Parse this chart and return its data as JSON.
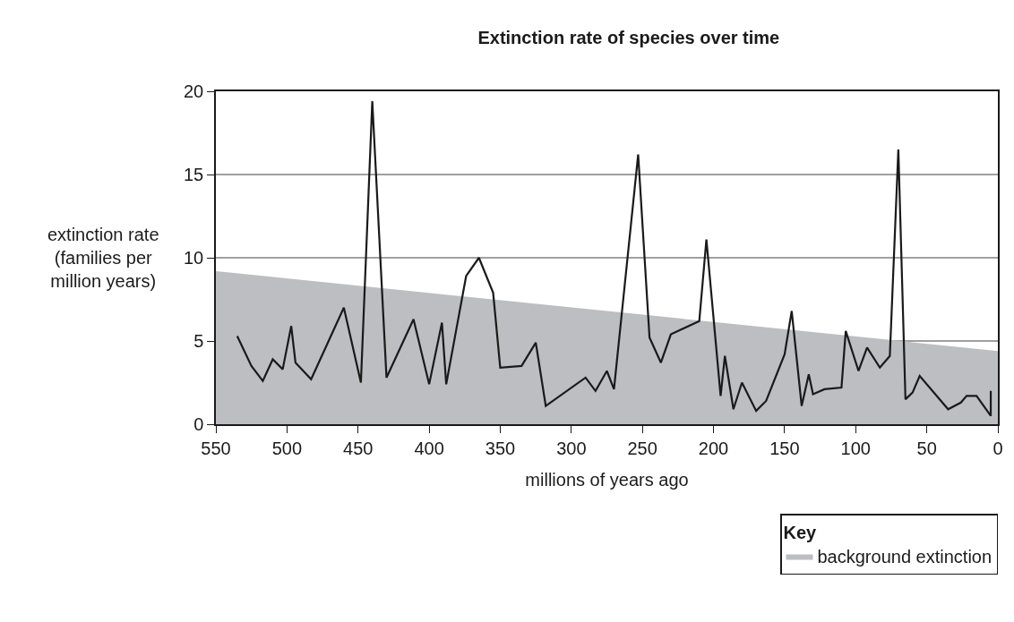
{
  "chart_data": {
    "type": "line",
    "title": "Extinction rate of species over time",
    "xlabel": "millions of years ago",
    "ylabel": "extinction rate\n(families per\nmillion years)",
    "legend_title": "Key",
    "xlim": [
      550,
      0
    ],
    "xticks": [
      550,
      500,
      450,
      400,
      350,
      300,
      250,
      200,
      150,
      100,
      50,
      0
    ],
    "ylim": [
      0,
      20
    ],
    "yticks": [
      0,
      5,
      10,
      15,
      20
    ],
    "grid": "y",
    "legend": "bottom right",
    "marker": "none",
    "line_style": "solid",
    "series": [
      {
        "name": "background extinction",
        "type": "area",
        "color": "#bdbec2",
        "x": [
          550,
          0
        ],
        "values": [
          9.2,
          4.4
        ]
      },
      {
        "color": "#1a1a1a",
        "x": [
          535,
          525,
          517,
          510,
          503,
          497,
          494,
          483,
          460,
          448,
          440,
          430,
          411,
          400,
          391,
          388,
          374,
          365,
          355,
          350,
          335,
          325,
          318,
          290,
          283,
          275,
          270,
          253,
          245,
          237,
          230,
          210,
          205,
          195,
          192,
          186,
          180,
          170,
          163,
          150,
          145,
          138,
          133,
          130,
          122,
          110,
          107,
          98,
          92,
          83,
          76,
          70,
          65,
          60,
          55,
          35,
          26,
          22,
          15,
          5,
          5
        ],
        "values": [
          5.3,
          3.5,
          2.6,
          3.9,
          3.3,
          5.9,
          3.7,
          2.7,
          7.0,
          2.5,
          19.4,
          2.8,
          6.3,
          2.4,
          6.1,
          2.4,
          8.9,
          10.0,
          7.9,
          3.4,
          3.5,
          4.9,
          1.1,
          2.8,
          2.0,
          3.2,
          2.1,
          16.2,
          5.2,
          3.7,
          5.4,
          6.2,
          11.1,
          1.7,
          4.1,
          0.9,
          2.5,
          0.8,
          1.4,
          4.2,
          6.8,
          1.1,
          3.0,
          1.8,
          2.1,
          2.2,
          5.6,
          3.2,
          4.6,
          3.4,
          4.1,
          16.5,
          1.5,
          1.9,
          2.9,
          0.9,
          1.3,
          1.7,
          1.7,
          0.5,
          2.0
        ]
      }
    ]
  }
}
